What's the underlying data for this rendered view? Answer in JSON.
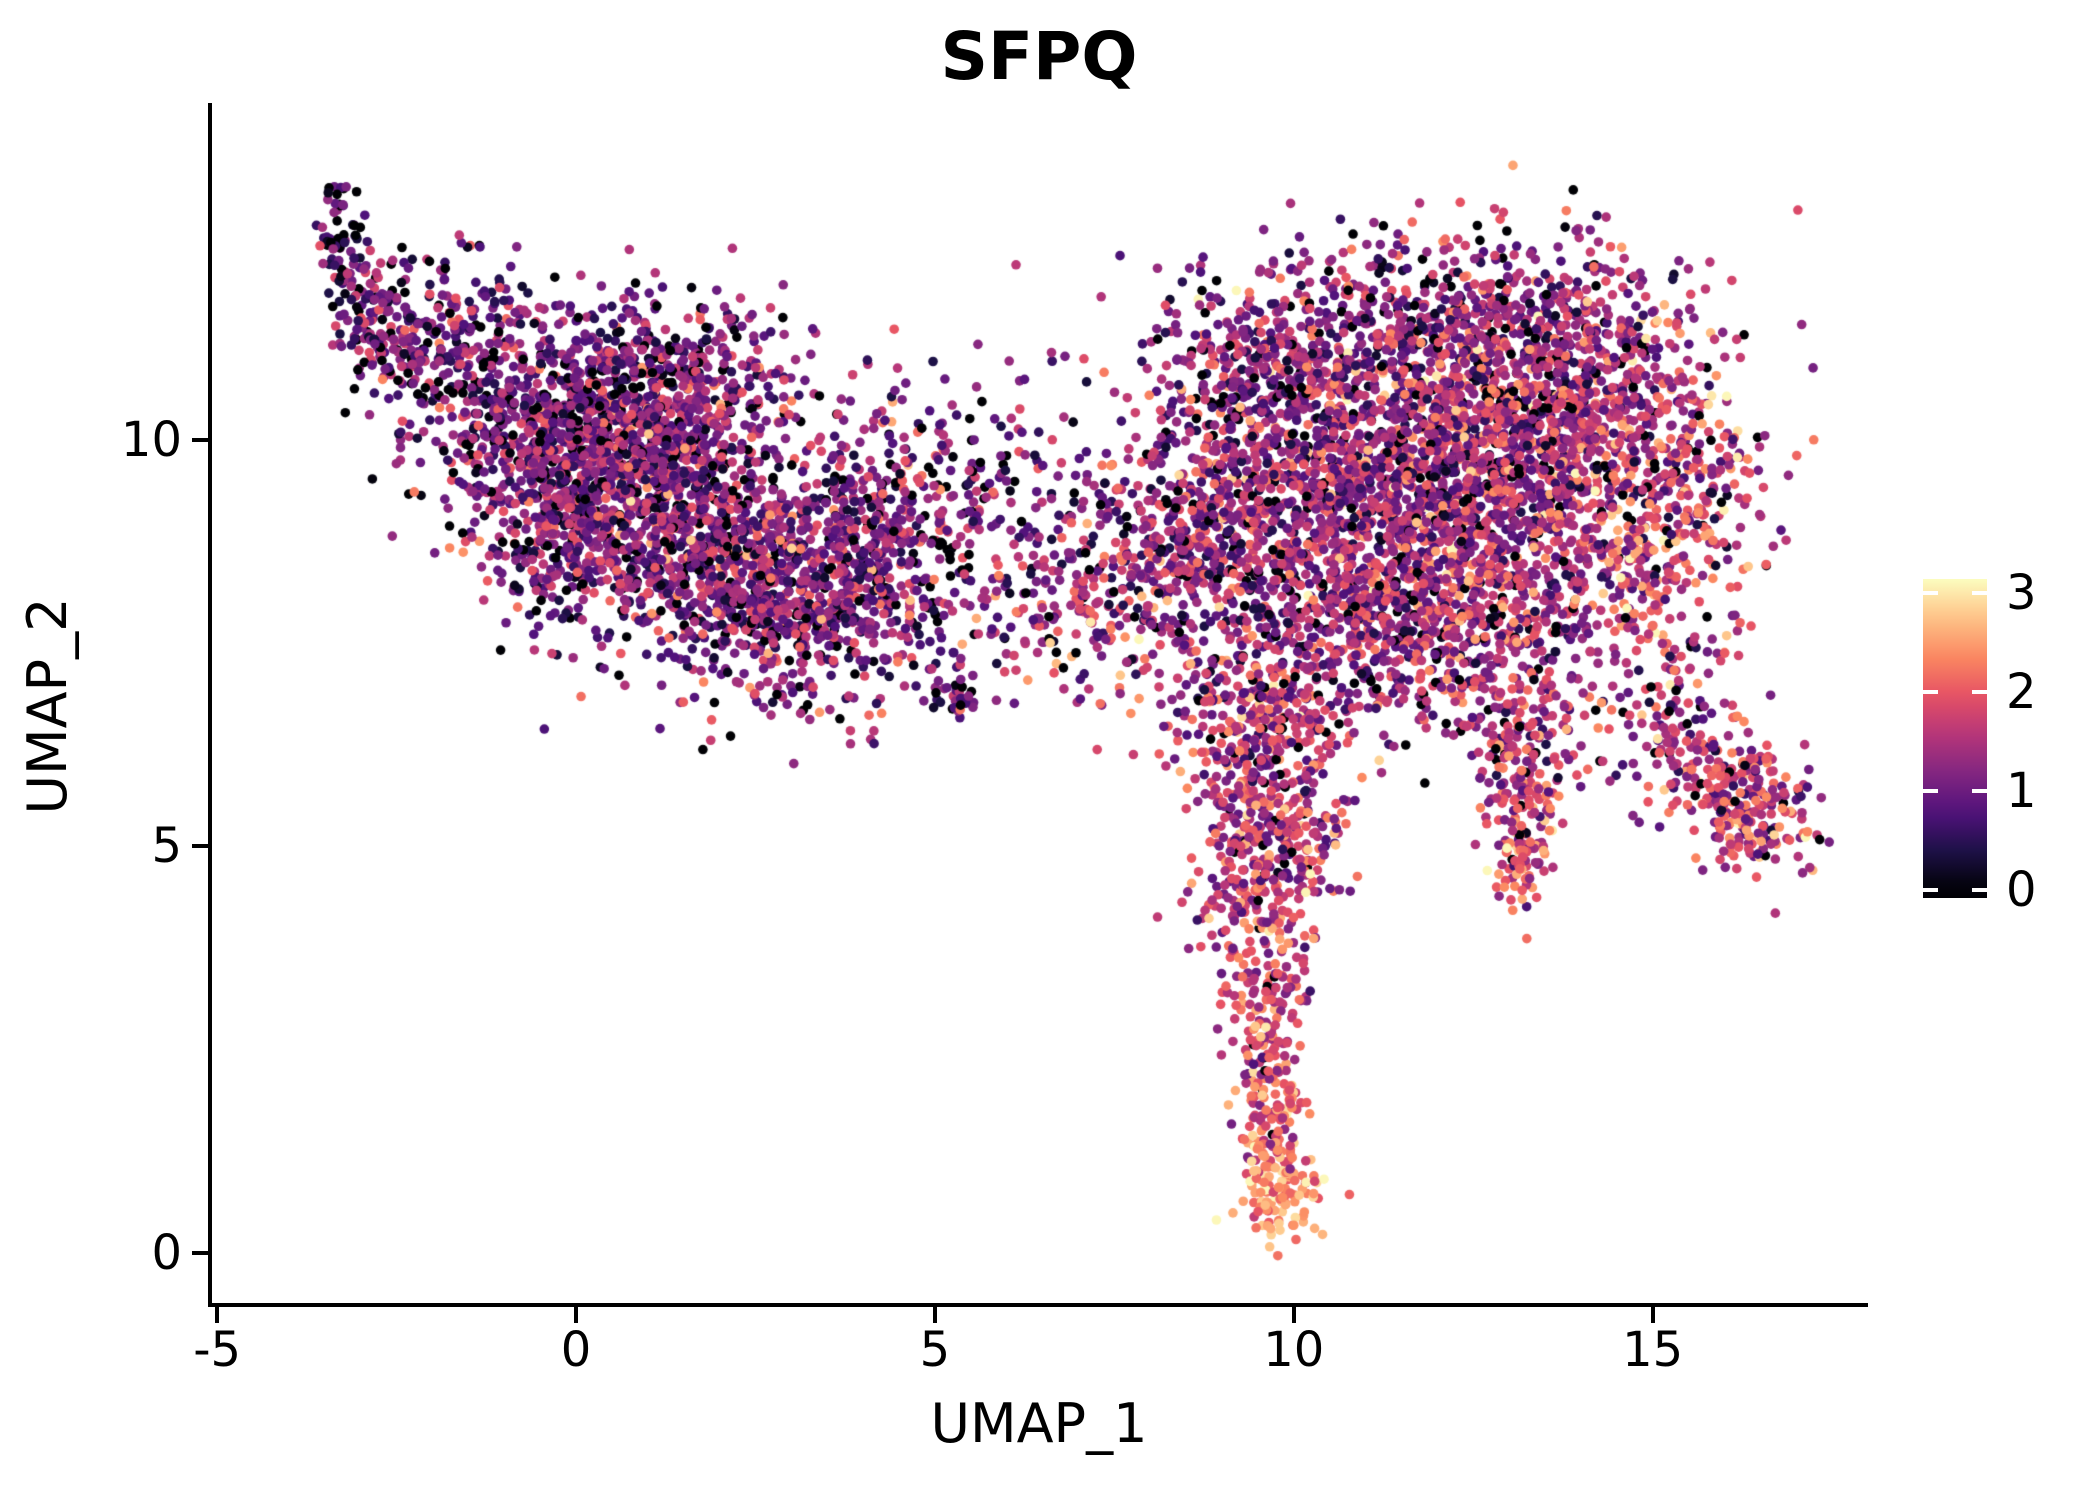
{
  "chart_data": {
    "type": "scatter",
    "title": "SFPQ",
    "xlabel": "UMAP_1",
    "ylabel": "UMAP_2",
    "xlim": [
      -5.1,
      18.0
    ],
    "ylim": [
      -0.64,
      14.12
    ],
    "xticks": [
      -5,
      0,
      5,
      10,
      15
    ],
    "yticks": [
      0,
      5,
      10
    ],
    "grid": false,
    "legend_position": "right",
    "point_radius_px": 4.8,
    "seed": 123457,
    "colorbar": {
      "ticks": [
        0,
        1,
        2,
        3
      ],
      "vmin": 0,
      "vmax": 3.14,
      "bar_min": -0.08,
      "colormap": "magma",
      "stops": [
        "#000004",
        "#1D1147",
        "#51127C",
        "#822681",
        "#B63679",
        "#E65164",
        "#FB8861",
        "#FEC287",
        "#FCFDBF"
      ]
    },
    "clusters": [
      {
        "name": "left-tail-tip",
        "cx": -3.3,
        "cy": 12.45,
        "sx": 0.14,
        "sy": 0.35,
        "n": 60,
        "expr": {
          "z": 0.15,
          "m": 0.9,
          "s": 0.5
        }
      },
      {
        "name": "left-tail-2",
        "cx": -2.95,
        "cy": 11.75,
        "sx": 0.22,
        "sy": 0.35,
        "n": 70,
        "expr": {
          "z": 0.12,
          "m": 1.0,
          "s": 0.5
        }
      },
      {
        "name": "left-tail-3",
        "cx": -2.55,
        "cy": 11.2,
        "sx": 0.3,
        "sy": 0.35,
        "n": 90,
        "expr": {
          "z": 0.12,
          "m": 1.0,
          "s": 0.5
        }
      },
      {
        "name": "left-upper-sparse",
        "cx": -1.7,
        "cy": 11.4,
        "sx": 0.6,
        "sy": 0.55,
        "n": 160,
        "expr": {
          "z": 0.12,
          "m": 1.0,
          "s": 0.55
        }
      },
      {
        "name": "left-upper-body",
        "cx": -0.9,
        "cy": 10.3,
        "sx": 0.75,
        "sy": 0.6,
        "n": 280,
        "expr": {
          "z": 0.1,
          "m": 1.1,
          "s": 0.55
        }
      },
      {
        "name": "left-body-core",
        "cx": 0.7,
        "cy": 9.7,
        "sx": 1.05,
        "sy": 0.8,
        "n": 1250,
        "expr": {
          "z": 0.1,
          "m": 1.2,
          "s": 0.55
        }
      },
      {
        "name": "left-body-low",
        "cx": 2.6,
        "cy": 8.3,
        "sx": 1.15,
        "sy": 0.75,
        "n": 1000,
        "expr": {
          "z": 0.1,
          "m": 1.2,
          "s": 0.6
        }
      },
      {
        "name": "left-right-lobe",
        "cx": 4.2,
        "cy": 8.9,
        "sx": 0.55,
        "sy": 0.85,
        "n": 280,
        "expr": {
          "z": 0.1,
          "m": 1.2,
          "s": 0.6
        }
      },
      {
        "name": "left-bottom-edge",
        "cx": -0.3,
        "cy": 8.8,
        "sx": 0.55,
        "sy": 0.6,
        "n": 170,
        "expr": {
          "z": 0.12,
          "m": 1.1,
          "s": 0.55
        }
      },
      {
        "name": "left-top-mid",
        "cx": 1.3,
        "cy": 10.9,
        "sx": 0.9,
        "sy": 0.45,
        "n": 260,
        "expr": {
          "z": 0.1,
          "m": 1.1,
          "s": 0.5
        }
      },
      {
        "name": "bridge-upper",
        "cx": 5.6,
        "cy": 9.3,
        "sx": 0.8,
        "sy": 0.75,
        "n": 150,
        "expr": {
          "z": 0.1,
          "m": 1.1,
          "s": 0.6
        }
      },
      {
        "name": "bridge-lower",
        "cx": 6.5,
        "cy": 7.9,
        "sx": 0.85,
        "sy": 0.65,
        "n": 150,
        "expr": {
          "z": 0.08,
          "m": 1.3,
          "s": 0.6
        }
      },
      {
        "name": "bridge-clump",
        "cx": 5.25,
        "cy": 6.85,
        "sx": 0.18,
        "sy": 0.12,
        "n": 30,
        "expr": {
          "z": 0.1,
          "m": 1.0,
          "s": 0.5
        }
      },
      {
        "name": "bridge-right",
        "cx": 7.6,
        "cy": 8.6,
        "sx": 0.6,
        "sy": 0.8,
        "n": 180,
        "expr": {
          "z": 0.08,
          "m": 1.3,
          "s": 0.6
        }
      },
      {
        "name": "right-core-left",
        "cx": 10.4,
        "cy": 9.2,
        "sx": 1.1,
        "sy": 1.0,
        "n": 1100,
        "expr": {
          "z": 0.08,
          "m": 1.3,
          "s": 0.6
        }
      },
      {
        "name": "right-core",
        "cx": 12.9,
        "cy": 9.5,
        "sx": 1.25,
        "sy": 1.05,
        "n": 1500,
        "expr": {
          "z": 0.07,
          "m": 1.45,
          "s": 0.62
        }
      },
      {
        "name": "right-top",
        "cx": 11.8,
        "cy": 11.3,
        "sx": 1.4,
        "sy": 0.65,
        "n": 600,
        "expr": {
          "z": 0.09,
          "m": 1.25,
          "s": 0.6
        }
      },
      {
        "name": "right-upperleft-arm",
        "cx": 9.4,
        "cy": 10.9,
        "sx": 0.75,
        "sy": 0.55,
        "n": 220,
        "expr": {
          "z": 0.1,
          "m": 1.2,
          "s": 0.55
        }
      },
      {
        "name": "right-bottom",
        "cx": 11.6,
        "cy": 7.5,
        "sx": 1.3,
        "sy": 0.55,
        "n": 500,
        "expr": {
          "z": 0.07,
          "m": 1.45,
          "s": 0.6
        }
      },
      {
        "name": "right-right-edge",
        "cx": 15.2,
        "cy": 9.2,
        "sx": 0.65,
        "sy": 1.05,
        "n": 380,
        "expr": {
          "z": 0.04,
          "m": 1.8,
          "s": 0.6
        }
      },
      {
        "name": "right-left-edge",
        "cx": 8.7,
        "cy": 8.7,
        "sx": 0.55,
        "sy": 0.75,
        "n": 250,
        "expr": {
          "z": 0.08,
          "m": 1.3,
          "s": 0.6
        }
      },
      {
        "name": "right-top-right",
        "cx": 14.0,
        "cy": 10.8,
        "sx": 0.8,
        "sy": 0.7,
        "n": 300,
        "expr": {
          "z": 0.08,
          "m": 1.4,
          "s": 0.6
        }
      },
      {
        "name": "neck",
        "cx": 9.6,
        "cy": 6.6,
        "sx": 0.7,
        "sy": 0.45,
        "n": 220,
        "expr": {
          "z": 0.06,
          "m": 1.5,
          "s": 0.6
        }
      },
      {
        "name": "drip-1",
        "cx": 9.5,
        "cy": 5.7,
        "sx": 0.5,
        "sy": 0.45,
        "n": 150,
        "expr": {
          "z": 0.05,
          "m": 1.6,
          "s": 0.55
        }
      },
      {
        "name": "drip-2",
        "cx": 10.0,
        "cy": 5.0,
        "sx": 0.5,
        "sy": 0.4,
        "n": 120,
        "expr": {
          "z": 0.04,
          "m": 1.7,
          "s": 0.55
        }
      },
      {
        "name": "drip-3",
        "cx": 9.35,
        "cy": 4.4,
        "sx": 0.35,
        "sy": 0.45,
        "n": 110,
        "expr": {
          "z": 0.04,
          "m": 1.7,
          "s": 0.5
        }
      },
      {
        "name": "drip-4",
        "cx": 9.65,
        "cy": 3.4,
        "sx": 0.3,
        "sy": 0.5,
        "n": 100,
        "expr": {
          "z": 0.03,
          "m": 1.8,
          "s": 0.5
        }
      },
      {
        "name": "drip-5",
        "cx": 9.6,
        "cy": 2.4,
        "sx": 0.25,
        "sy": 0.45,
        "n": 85,
        "expr": {
          "z": 0.03,
          "m": 1.9,
          "s": 0.5
        }
      },
      {
        "name": "drip-6",
        "cx": 9.7,
        "cy": 1.55,
        "sx": 0.22,
        "sy": 0.35,
        "n": 75,
        "expr": {
          "z": 0.02,
          "m": 2.0,
          "s": 0.5
        }
      },
      {
        "name": "drip-tip",
        "cx": 9.8,
        "cy": 0.8,
        "sx": 0.28,
        "sy": 0.32,
        "n": 120,
        "expr": {
          "z": 0.0,
          "m": 2.5,
          "s": 0.4
        }
      },
      {
        "name": "spike-1",
        "cx": 13.35,
        "cy": 6.3,
        "sx": 0.45,
        "sy": 0.4,
        "n": 110,
        "expr": {
          "z": 0.06,
          "m": 1.5,
          "s": 0.6
        }
      },
      {
        "name": "spike-2",
        "cx": 13.15,
        "cy": 5.5,
        "sx": 0.28,
        "sy": 0.4,
        "n": 80,
        "expr": {
          "z": 0.04,
          "m": 1.7,
          "s": 0.55
        }
      },
      {
        "name": "spike-tip",
        "cx": 13.2,
        "cy": 4.8,
        "sx": 0.22,
        "sy": 0.3,
        "n": 60,
        "expr": {
          "z": 0.02,
          "m": 2.0,
          "s": 0.55
        }
      },
      {
        "name": "arm-1",
        "cx": 15.1,
        "cy": 6.5,
        "sx": 0.45,
        "sy": 0.4,
        "n": 90,
        "expr": {
          "z": 0.06,
          "m": 1.5,
          "s": 0.6
        }
      },
      {
        "name": "arm-2",
        "cx": 15.9,
        "cy": 5.85,
        "sx": 0.4,
        "sy": 0.35,
        "n": 100,
        "expr": {
          "z": 0.05,
          "m": 1.6,
          "s": 0.6
        }
      },
      {
        "name": "arm-blob",
        "cx": 16.45,
        "cy": 5.35,
        "sx": 0.38,
        "sy": 0.33,
        "n": 150,
        "expr": {
          "z": 0.04,
          "m": 1.7,
          "s": 0.6
        }
      }
    ]
  }
}
